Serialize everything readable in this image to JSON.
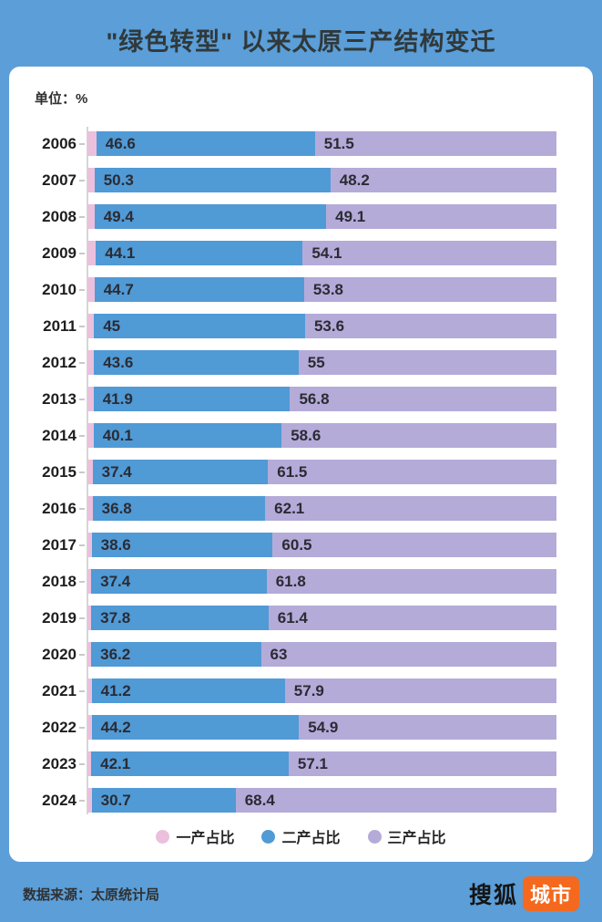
{
  "title": "\"绿色转型\" 以来太原三产结构变迁",
  "unit_label": "单位：%",
  "footer": {
    "source": "数据来源：太原统计局",
    "logo_text": "搜狐",
    "logo_badge": "城市"
  },
  "colors": {
    "background": "#5B9ED8",
    "card": "#FFFFFF",
    "primary_pink": "#EBC0DC",
    "secondary_blue": "#509AD6",
    "tertiary_purple": "#B4ABD9",
    "badge_orange": "#F4691D"
  },
  "chart_data": {
    "type": "bar",
    "orientation": "horizontal",
    "stacked": true,
    "value_unit": "%",
    "xlim": [
      0,
      100
    ],
    "grid": false,
    "legend_position": "bottom",
    "categories": [
      "2006",
      "2007",
      "2008",
      "2009",
      "2010",
      "2011",
      "2012",
      "2013",
      "2014",
      "2015",
      "2016",
      "2017",
      "2018",
      "2019",
      "2020",
      "2021",
      "2022",
      "2023",
      "2024"
    ],
    "series": [
      {
        "name": "一产占比",
        "color": "#EBC0DC",
        "show_value_labels": false,
        "values": [
          1.9,
          1.5,
          1.5,
          1.8,
          1.5,
          1.4,
          1.4,
          1.3,
          1.3,
          1.1,
          1.1,
          0.9,
          0.8,
          0.8,
          0.8,
          0.9,
          0.9,
          0.8,
          0.9
        ]
      },
      {
        "name": "二产占比",
        "color": "#509AD6",
        "show_value_labels": true,
        "values": [
          46.6,
          50.3,
          49.4,
          44.1,
          44.7,
          45,
          43.6,
          41.9,
          40.1,
          37.4,
          36.8,
          38.6,
          37.4,
          37.8,
          36.2,
          41.2,
          44.2,
          42.1,
          30.7
        ]
      },
      {
        "name": "三产占比",
        "color": "#B4ABD9",
        "show_value_labels": true,
        "values": [
          51.5,
          48.2,
          49.1,
          54.1,
          53.8,
          53.6,
          55,
          56.8,
          58.6,
          61.5,
          62.1,
          60.5,
          61.8,
          61.4,
          63,
          57.9,
          54.9,
          57.1,
          68.4
        ]
      }
    ]
  }
}
